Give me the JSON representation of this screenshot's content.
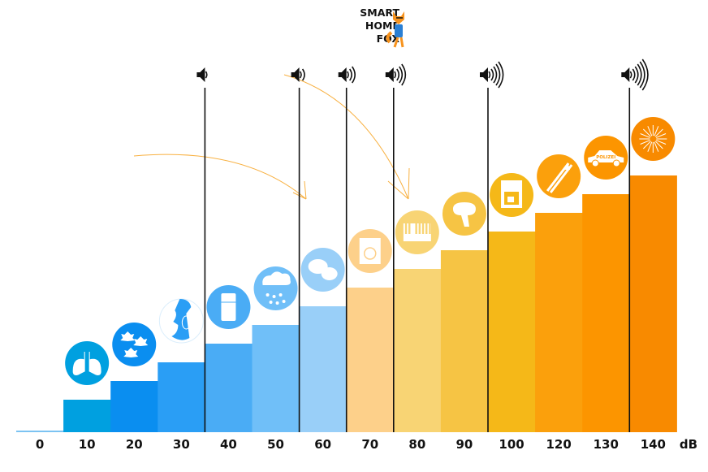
{
  "logo": {
    "lines": [
      "SMART",
      "HOME",
      "FOX"
    ]
  },
  "chart_data": {
    "type": "bar",
    "unit_label": "dB",
    "categories": [
      "0",
      "10",
      "20",
      "30",
      "40",
      "50",
      "60",
      "70",
      "80",
      "90",
      "100",
      "120",
      "130",
      "140"
    ],
    "values": [
      0,
      10,
      20,
      30,
      40,
      50,
      60,
      70,
      80,
      90,
      100,
      120,
      130,
      140
    ],
    "colors": [
      "#7cc3f2",
      "#00a0e0",
      "#0a8ef0",
      "#2a9ef5",
      "#4aacf5",
      "#70bff8",
      "#99cff8",
      "#fdd08a",
      "#f8d474",
      "#f6c444",
      "#f5b818",
      "#fba00c",
      "#fc9500",
      "#f88a00"
    ],
    "icons": [
      null,
      "lungs-icon",
      "falling-leaves-icon",
      "whisper-ear-icon",
      "refrigerator-icon",
      "rain-icon",
      "conversation-icon",
      "washing-machine-icon",
      "piano-icon",
      "hair-dryer-icon",
      "coffee-machine-icon",
      "trombone-icon",
      "police-car-icon",
      "fireworks-icon"
    ],
    "police_car_text": "POLIZEI",
    "loudness_markers": [
      {
        "at": "40",
        "waves": 1
      },
      {
        "at": "60",
        "waves": 2
      },
      {
        "at": "70",
        "waves": 3
      },
      {
        "at": "80",
        "waves": 4
      },
      {
        "at": "100",
        "waves": 5
      },
      {
        "at": "140",
        "waves": 6
      }
    ],
    "accent_arrow_color": "#f8b040"
  }
}
